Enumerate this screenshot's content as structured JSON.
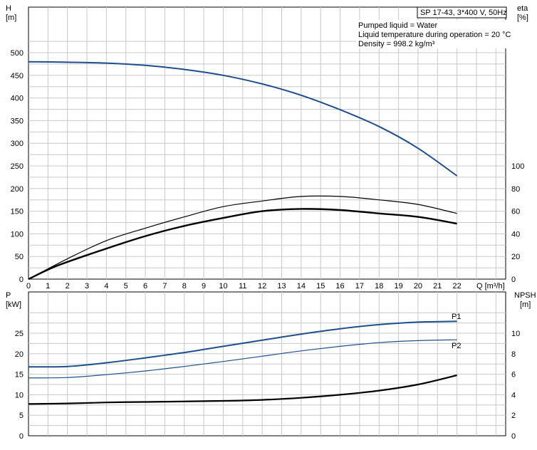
{
  "chart_data": [
    {
      "type": "line",
      "title": "SP 17-43, 3*400 V, 50Hz",
      "annotations": [
        "Pumped liquid = Water",
        "Liquid temperature during operation = 20 °C",
        "Density = 998.2 kg/m³"
      ],
      "xlabel": "Q [m³/h]",
      "ylabel": "H [m]",
      "ylabel_lines": [
        "H",
        "[m]"
      ],
      "y2label": "eta [%]",
      "y2label_lines": [
        "eta",
        "[%]"
      ],
      "xlim": [
        0,
        24.5
      ],
      "ylim": [
        0,
        500
      ],
      "y2lim": [
        0,
        100
      ],
      "x_ticks": [
        0,
        1,
        2,
        3,
        4,
        5,
        6,
        7,
        8,
        9,
        10,
        11,
        12,
        13,
        14,
        15,
        16,
        17,
        18,
        19,
        20,
        21,
        22
      ],
      "y_ticks": [
        0,
        50,
        100,
        150,
        200,
        250,
        300,
        350,
        400,
        450,
        500
      ],
      "y2_ticks": [
        0,
        20,
        40,
        60,
        80,
        100
      ],
      "grid": true,
      "series": [
        {
          "role": "head",
          "axis": "y",
          "color": "#1f4e8c",
          "x": [
            0,
            2,
            4,
            6,
            8,
            10,
            12,
            14,
            16,
            18,
            20,
            22
          ],
          "values": [
            480,
            479,
            477,
            472,
            463,
            450,
            431,
            406,
            374,
            337,
            289,
            228
          ]
        },
        {
          "role": "efficiency-upper",
          "axis": "y2",
          "color": "#000000",
          "x": [
            0,
            2,
            4,
            6,
            8,
            10,
            12,
            14,
            16,
            18,
            20,
            22
          ],
          "values": [
            0,
            18,
            34,
            45,
            55,
            64,
            69,
            73,
            73,
            70,
            66,
            58
          ]
        },
        {
          "role": "efficiency-lower",
          "axis": "y2",
          "color": "#000000",
          "x": [
            0,
            1.5,
            4,
            6,
            8,
            10,
            12,
            14,
            16,
            18,
            20,
            22
          ],
          "values": [
            0,
            12,
            27,
            38,
            47,
            54,
            60,
            62,
            61,
            58,
            55,
            49
          ]
        }
      ]
    },
    {
      "type": "line",
      "ylabel": "P [kW]",
      "ylabel_lines": [
        "P",
        "[kW]"
      ],
      "y2label": "NPSH [m]",
      "y2label_lines": [
        "NPSH",
        "[m]"
      ],
      "xlim": [
        0,
        24.5
      ],
      "ylim": [
        0,
        30
      ],
      "y2lim": [
        0,
        12
      ],
      "y_ticks": [
        0,
        5,
        10,
        15,
        20,
        25
      ],
      "y2_ticks": [
        0,
        2,
        4,
        6,
        8,
        10
      ],
      "grid": true,
      "series": [
        {
          "name": "P1",
          "axis": "y",
          "color": "#1f4e8c",
          "x": [
            0,
            2,
            4,
            6,
            8,
            10,
            12,
            14,
            16,
            18,
            20,
            22
          ],
          "values": [
            16.8,
            16.9,
            17.8,
            19.0,
            20.3,
            21.8,
            23.3,
            24.8,
            26.1,
            27.1,
            27.7,
            27.9
          ]
        },
        {
          "name": "P2",
          "axis": "y",
          "color": "#1f4e8c",
          "x": [
            0,
            2,
            4,
            6,
            8,
            10,
            12,
            14,
            16,
            18,
            20,
            22
          ],
          "values": [
            14.1,
            14.2,
            14.9,
            15.8,
            16.9,
            18.1,
            19.4,
            20.7,
            21.8,
            22.7,
            23.2,
            23.4
          ]
        },
        {
          "role": "npsh",
          "axis": "y2",
          "color": "#000000",
          "x": [
            0,
            2,
            4,
            6,
            8,
            10,
            12,
            14,
            16,
            18,
            20,
            22
          ],
          "values": [
            3.1,
            3.15,
            3.25,
            3.3,
            3.35,
            3.4,
            3.5,
            3.7,
            4.0,
            4.4,
            5.0,
            5.9
          ]
        }
      ]
    }
  ]
}
